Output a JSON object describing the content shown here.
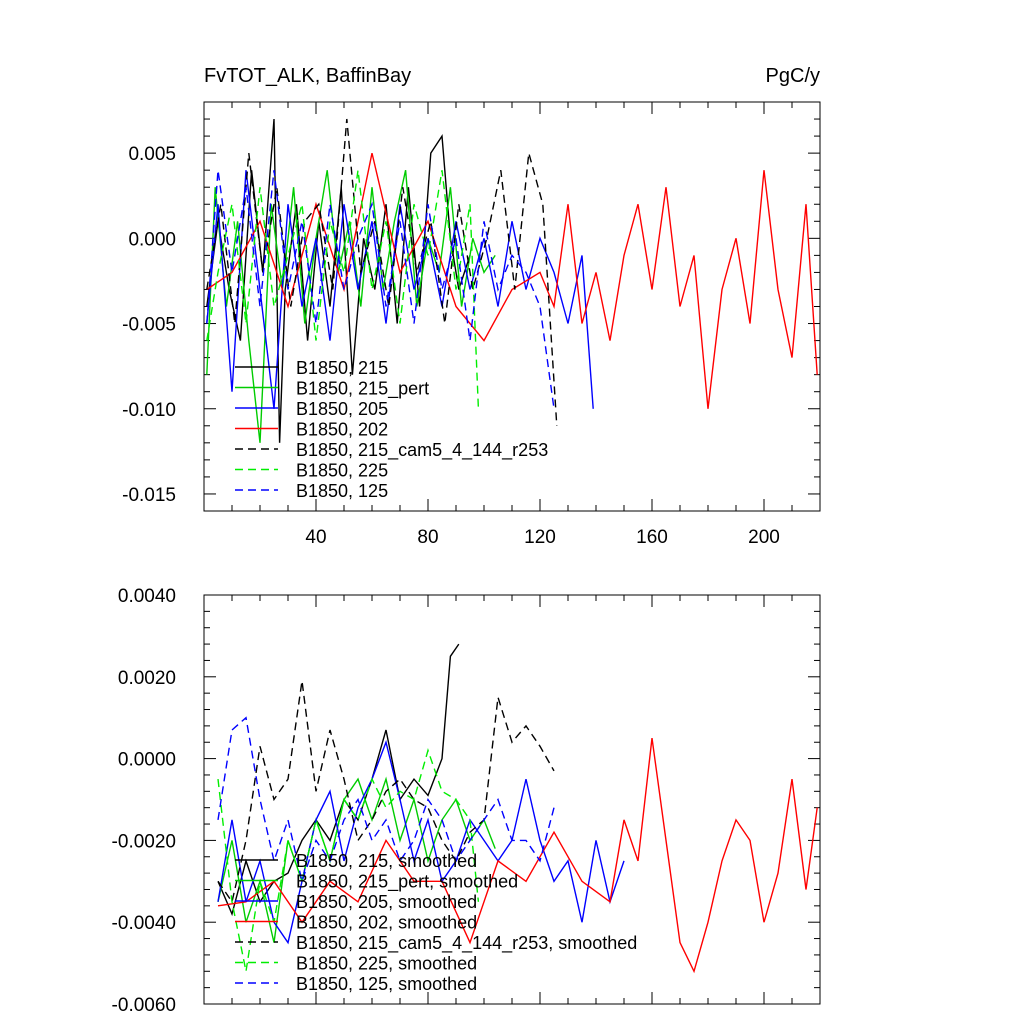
{
  "chart_data": [
    {
      "type": "line",
      "title_left": "FvTOT_ALK, BaffinBay",
      "title_right": "PgC/y",
      "xlabel": "",
      "ylabel": "",
      "xlim": [
        0,
        220
      ],
      "ylim": [
        -0.016,
        0.008
      ],
      "xticks": [
        40,
        80,
        120,
        160,
        200
      ],
      "xtick_labels": [
        "40",
        "80",
        "120",
        "160",
        "200"
      ],
      "yticks": [
        0.005,
        0.0,
        -0.005,
        -0.01,
        -0.015
      ],
      "ytick_labels": [
        "0.005",
        "0.000",
        "-0.005",
        "-0.010",
        "-0.015"
      ],
      "legend_position": "bottom-left",
      "series": [
        {
          "name": "B1850, 215",
          "color": "#000000",
          "dash": "solid",
          "x": [
            1,
            5,
            9,
            13,
            17,
            21,
            25,
            27,
            29,
            33,
            37,
            41,
            45,
            49,
            53,
            57,
            61,
            65,
            69,
            73,
            77,
            81,
            85,
            88,
            91,
            95
          ],
          "y": [
            -0.004,
            0.001,
            -0.003,
            -0.006,
            0.004,
            -0.002,
            0.007,
            -0.012,
            -0.003,
            0.002,
            -0.006,
            0.001,
            -0.004,
            0.003,
            -0.008,
            0.0,
            -0.003,
            0.002,
            -0.005,
            0.003,
            -0.004,
            0.005,
            0.006,
            0.0,
            -0.003,
            -0.001
          ]
        },
        {
          "name": "B1850, 215_pert",
          "color": "#00cc00",
          "dash": "solid",
          "x": [
            1,
            4,
            8,
            12,
            16,
            20,
            24,
            28,
            32,
            36,
            40,
            44,
            48,
            52,
            56,
            60,
            64,
            68,
            72,
            76,
            80,
            84,
            88,
            92,
            96,
            100,
            104
          ],
          "y": [
            -0.008,
            0.003,
            -0.004,
            0.001,
            -0.006,
            -0.012,
            0.002,
            -0.003,
            0.003,
            -0.005,
            0.0,
            0.004,
            -0.002,
            0.001,
            -0.004,
            0.003,
            -0.003,
            0.001,
            0.004,
            -0.004,
            0.0,
            -0.002,
            0.003,
            -0.004,
            0.0,
            -0.002,
            -0.001
          ]
        },
        {
          "name": "B1850, 205",
          "color": "#0000ff",
          "dash": "solid",
          "x": [
            1,
            5,
            10,
            15,
            20,
            25,
            30,
            35,
            40,
            45,
            50,
            55,
            60,
            65,
            70,
            75,
            80,
            85,
            90,
            95,
            100,
            105,
            110,
            115,
            120,
            125,
            130,
            135,
            139
          ],
          "y": [
            -0.005,
            0.002,
            -0.009,
            0.004,
            -0.003,
            -0.01,
            0.002,
            -0.004,
            0.0,
            -0.006,
            0.002,
            -0.003,
            0.001,
            -0.005,
            0.002,
            -0.003,
            0.0,
            -0.004,
            0.001,
            -0.003,
            0.0,
            -0.004,
            0.001,
            -0.003,
            0.0,
            -0.002,
            -0.005,
            -0.001,
            -0.01
          ]
        },
        {
          "name": "B1850, 202",
          "color": "#ff0000",
          "dash": "solid",
          "x": [
            1,
            10,
            20,
            30,
            40,
            50,
            60,
            70,
            80,
            90,
            100,
            110,
            120,
            125,
            130,
            135,
            140,
            145,
            150,
            155,
            160,
            165,
            170,
            175,
            180,
            185,
            190,
            195,
            200,
            205,
            210,
            215,
            219
          ],
          "y": [
            -0.003,
            -0.002,
            0.001,
            -0.004,
            0.002,
            -0.003,
            0.005,
            -0.002,
            0.001,
            -0.004,
            -0.006,
            -0.003,
            -0.002,
            -0.004,
            0.002,
            -0.005,
            -0.002,
            -0.006,
            -0.001,
            0.002,
            -0.003,
            0.003,
            -0.004,
            -0.001,
            -0.01,
            -0.003,
            0.0,
            -0.005,
            0.004,
            -0.003,
            -0.007,
            0.002,
            -0.008
          ]
        },
        {
          "name": "B1850, 215_cam5_4_144_r253",
          "color": "#000000",
          "dash": "dashed",
          "x": [
            1,
            6,
            11,
            16,
            21,
            26,
            31,
            36,
            41,
            46,
            51,
            56,
            61,
            66,
            71,
            76,
            81,
            86,
            91,
            96,
            101,
            106,
            111,
            116,
            121,
            126
          ],
          "y": [
            -0.003,
            0.002,
            -0.005,
            0.005,
            -0.002,
            0.003,
            -0.004,
            0.001,
            0.002,
            -0.003,
            0.007,
            -0.002,
            0.001,
            -0.004,
            0.003,
            -0.002,
            0.001,
            -0.005,
            0.002,
            -0.003,
            0.0,
            0.004,
            -0.003,
            0.005,
            0.002,
            -0.011
          ]
        },
        {
          "name": "B1850, 225",
          "color": "#00ee00",
          "dash": "dashed",
          "x": [
            1,
            5,
            10,
            15,
            20,
            25,
            30,
            35,
            40,
            45,
            50,
            55,
            60,
            65,
            70,
            75,
            80,
            85,
            90,
            95,
            98
          ],
          "y": [
            -0.006,
            -0.002,
            0.002,
            -0.005,
            0.003,
            -0.004,
            -0.001,
            0.002,
            -0.006,
            0.001,
            -0.002,
            0.004,
            -0.003,
            0.001,
            -0.005,
            0.002,
            -0.001,
            0.004,
            -0.003,
            0.002,
            -0.01
          ]
        },
        {
          "name": "B1850, 125",
          "color": "#0000ff",
          "dash": "dashed",
          "x": [
            1,
            5,
            10,
            15,
            20,
            25,
            30,
            35,
            40,
            45,
            50,
            55,
            60,
            65,
            70,
            75,
            80,
            85,
            90,
            95,
            100,
            105,
            110,
            115,
            120,
            125
          ],
          "y": [
            -0.005,
            0.004,
            -0.002,
            0.003,
            -0.004,
            0.004,
            -0.003,
            0.001,
            -0.005,
            0.002,
            -0.003,
            0.0,
            0.002,
            -0.004,
            0.001,
            -0.005,
            0.002,
            -0.003,
            0.0,
            -0.006,
            0.001,
            -0.003,
            -0.001,
            -0.002,
            -0.004,
            -0.01
          ]
        }
      ]
    },
    {
      "type": "line",
      "xlabel": "",
      "ylabel": "",
      "xlim": [
        0,
        220
      ],
      "ylim": [
        -0.006,
        0.004
      ],
      "xticks": [
        40,
        80,
        120,
        160,
        200
      ],
      "yticks": [
        0.004,
        0.002,
        0.0,
        -0.002,
        -0.004,
        -0.006
      ],
      "ytick_labels": [
        "0.0040",
        "0.0020",
        "0.0000",
        "-0.0020",
        "-0.0040",
        "-0.0060"
      ],
      "legend_position": "bottom-left",
      "series": [
        {
          "name": "B1850, 215, smoothed",
          "color": "#000000",
          "dash": "solid",
          "x": [
            5,
            10,
            15,
            20,
            25,
            30,
            35,
            40,
            45,
            50,
            55,
            60,
            65,
            70,
            75,
            80,
            85,
            88,
            91
          ],
          "y": [
            -0.003,
            -0.0038,
            -0.0025,
            -0.0035,
            -0.003,
            -0.0028,
            -0.002,
            -0.0015,
            -0.002,
            -0.001,
            -0.0015,
            -0.0005,
            0.0007,
            -0.001,
            -0.0005,
            -0.0009,
            0.0,
            0.0025,
            0.0028
          ]
        },
        {
          "name": "B1850, 215_pert, smoothed",
          "color": "#00cc00",
          "dash": "solid",
          "x": [
            5,
            10,
            15,
            20,
            25,
            30,
            35,
            40,
            45,
            50,
            55,
            60,
            65,
            70,
            75,
            80,
            85,
            90,
            95,
            100,
            104
          ],
          "y": [
            -0.0035,
            -0.002,
            -0.004,
            -0.003,
            -0.0045,
            -0.002,
            -0.003,
            -0.0015,
            -0.0025,
            -0.001,
            -0.0005,
            -0.0015,
            -0.0005,
            -0.002,
            -0.001,
            -0.0025,
            -0.0015,
            -0.001,
            -0.002,
            -0.0015,
            -0.0022
          ]
        },
        {
          "name": "B1850, 205, smoothed",
          "color": "#0000ff",
          "dash": "solid",
          "x": [
            5,
            10,
            15,
            20,
            25,
            30,
            35,
            40,
            45,
            50,
            55,
            60,
            65,
            70,
            75,
            80,
            85,
            90,
            95,
            100,
            105,
            110,
            115,
            120,
            125,
            130,
            135,
            140,
            145,
            150
          ],
          "y": [
            -0.0035,
            -0.0015,
            -0.0035,
            -0.0025,
            -0.004,
            -0.0045,
            -0.003,
            -0.0015,
            -0.0008,
            -0.0025,
            -0.0012,
            -0.0005,
            0.0004,
            -0.001,
            -0.0025,
            -0.0015,
            -0.003,
            -0.0025,
            -0.0015,
            -0.002,
            -0.0025,
            -0.002,
            -0.0005,
            -0.002,
            -0.003,
            -0.0025,
            -0.004,
            -0.002,
            -0.0035,
            -0.0025
          ]
        },
        {
          "name": "B1850, 202, smoothed",
          "color": "#ff0000",
          "dash": "solid",
          "x": [
            5,
            15,
            25,
            35,
            45,
            55,
            65,
            75,
            85,
            95,
            105,
            115,
            125,
            135,
            145,
            150,
            155,
            160,
            165,
            170,
            175,
            180,
            185,
            190,
            195,
            200,
            205,
            210,
            215,
            219
          ],
          "y": [
            -0.0036,
            -0.0035,
            -0.003,
            -0.004,
            -0.003,
            -0.0035,
            -0.002,
            -0.003,
            -0.003,
            -0.0045,
            -0.0025,
            -0.003,
            -0.0018,
            -0.003,
            -0.0035,
            -0.0015,
            -0.0025,
            0.0005,
            -0.002,
            -0.0045,
            -0.0052,
            -0.004,
            -0.0025,
            -0.0015,
            -0.002,
            -0.004,
            -0.0028,
            -0.0005,
            -0.0032,
            -0.0012
          ]
        },
        {
          "name": "B1850, 215_cam5_4_144_r253, smoothed",
          "color": "#000000",
          "dash": "dashed",
          "x": [
            5,
            10,
            15,
            20,
            25,
            30,
            35,
            40,
            45,
            50,
            55,
            60,
            65,
            70,
            75,
            80,
            85,
            90,
            95,
            100,
            105,
            110,
            115,
            120,
            125
          ],
          "y": [
            -0.003,
            -0.0035,
            -0.002,
            0.0003,
            -0.001,
            -0.0005,
            0.0019,
            -0.0008,
            0.0007,
            -0.0005,
            -0.002,
            -0.0015,
            -0.0008,
            -0.0005,
            -0.001,
            -0.0012,
            -0.002,
            -0.0025,
            -0.0018,
            -0.0015,
            0.0015,
            0.0004,
            0.0008,
            0.0003,
            -0.0003
          ]
        },
        {
          "name": "B1850, 225, smoothed",
          "color": "#00ee00",
          "dash": "dashed",
          "x": [
            5,
            10,
            15,
            20,
            25,
            30,
            35,
            40,
            45,
            50,
            55,
            60,
            65,
            70,
            75,
            80,
            85,
            90,
            95,
            98
          ],
          "y": [
            -0.0005,
            -0.0035,
            -0.0052,
            -0.003,
            -0.004,
            -0.002,
            -0.003,
            -0.0015,
            -0.0025,
            -0.001,
            -0.0015,
            -0.0005,
            -0.0012,
            -0.0008,
            -0.001,
            0.0002,
            -0.0008,
            -0.001,
            -0.0015,
            -0.0035
          ]
        },
        {
          "name": "B1850, 125, smoothed",
          "color": "#0000ff",
          "dash": "dashed",
          "x": [
            5,
            10,
            15,
            20,
            25,
            30,
            35,
            40,
            45,
            50,
            55,
            60,
            65,
            70,
            75,
            80,
            85,
            90,
            95,
            100,
            105,
            110,
            115,
            120,
            125
          ],
          "y": [
            -0.0015,
            0.0007,
            0.001,
            -0.001,
            -0.0025,
            -0.0015,
            -0.003,
            -0.002,
            -0.0025,
            -0.0015,
            -0.001,
            -0.002,
            -0.0015,
            -0.0025,
            -0.002,
            -0.001,
            -0.0015,
            -0.0025,
            -0.002,
            -0.0015,
            -0.001,
            -0.002,
            -0.002,
            -0.0025,
            -0.0012
          ]
        }
      ]
    }
  ]
}
